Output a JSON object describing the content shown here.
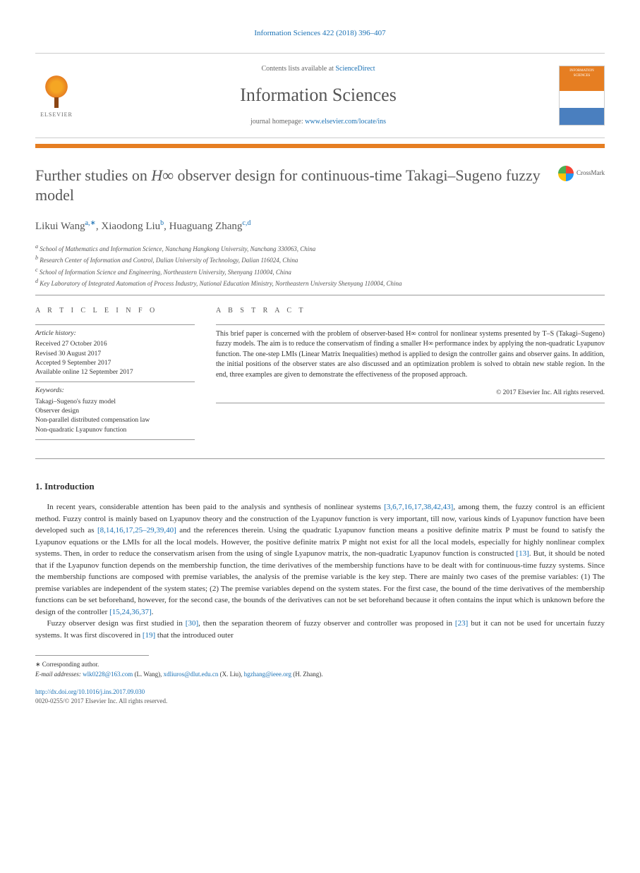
{
  "citation": "Information Sciences 422 (2018) 396–407",
  "header": {
    "contents_prefix": "Contents lists available at ",
    "contents_link": "ScienceDirect",
    "journal_name": "Information Sciences",
    "homepage_prefix": "journal homepage: ",
    "homepage_url": "www.elsevier.com/locate/ins",
    "elsevier": "ELSEVIER",
    "cover_text": "INFORMATION SCIENCES"
  },
  "orange_bar_color": "#e67e22",
  "title": {
    "prefix": "Further studies on ",
    "math": "H∞",
    "suffix": " observer design for continuous-time Takagi–Sugeno fuzzy model"
  },
  "crossmark": "CrossMark",
  "authors": [
    {
      "name": "Likui Wang",
      "sup": "a,∗"
    },
    {
      "name": "Xiaodong Liu",
      "sup": "b"
    },
    {
      "name": "Huaguang Zhang",
      "sup": "c,d"
    }
  ],
  "affiliations": [
    {
      "sup": "a",
      "text": "School of Mathematics and Information Science, Nanchang Hangkong University, Nanchang 330063, China"
    },
    {
      "sup": "b",
      "text": "Research Center of Information and Control, Dalian University of Technology, Dalian 116024, China"
    },
    {
      "sup": "c",
      "text": "School of Information Science and Engineering, Northeastern University, Shenyang 110004, China"
    },
    {
      "sup": "d",
      "text": "Key Laboratory of Integrated Automation of Process Industry, National Education Ministry, Northeastern University Shenyang 110004, China"
    }
  ],
  "article_info": {
    "heading": "A R T I C L E   I N F O",
    "history_label": "Article history:",
    "history": [
      "Received 27 October 2016",
      "Revised 30 August 2017",
      "Accepted 9 September 2017",
      "Available online 12 September 2017"
    ],
    "keywords_label": "Keywords:",
    "keywords": [
      "Takagi–Sugeno's fuzzy model",
      "Observer design",
      "Non-parallel distributed compensation law",
      "Non-quadratic Lyapunov function"
    ]
  },
  "abstract": {
    "heading": "A B S T R A C T",
    "text": "This brief paper is concerned with the problem of observer-based H∞ control for nonlinear systems presented by T–S (Takagi–Sugeno) fuzzy models. The aim is to reduce the conservatism of finding a smaller H∞ performance index by applying the non-quadratic Lyapunov function. The one-step LMIs (Linear Matrix Inequalities) method is applied to design the controller gains and observer gains. In addition, the initial positions of the observer states are also discussed and an optimization problem is solved to obtain new stable region. In the end, three examples are given to demonstrate the effectiveness of the proposed approach.",
    "copyright": "© 2017 Elsevier Inc. All rights reserved."
  },
  "section1": {
    "heading": "1. Introduction",
    "para1_parts": [
      {
        "t": "text",
        "v": "In recent years, considerable attention has been paid to the analysis and synthesis of nonlinear systems "
      },
      {
        "t": "ref",
        "v": "[3,6,7,16,17,38,42,43]"
      },
      {
        "t": "text",
        "v": ", among them, the fuzzy control is an efficient method. Fuzzy control is mainly based on Lyapunov theory and the construction of the Lyapunov function is very important, till now, various kinds of Lyapunov function have been developed such as "
      },
      {
        "t": "ref",
        "v": "[8,14,16,17,25–29,39,40]"
      },
      {
        "t": "text",
        "v": " and the references therein. Using the quadratic Lyapunov function means a positive definite matrix P must be found to satisfy the Lyapunov equations or the LMIs for all the local models. However, the positive definite matrix P might not exist for all the local models, especially for highly nonlinear complex systems. Then, in order to reduce the conservatism arisen from the using of single Lyapunov matrix, the non-quadratic Lyapunov function is constructed "
      },
      {
        "t": "ref",
        "v": "[13]"
      },
      {
        "t": "text",
        "v": ". But, it should be noted that if the Lyapunov function depends on the membership function, the time derivatives of the membership functions have to be dealt with for continuous-time fuzzy systems. Since the membership functions are composed with premise variables, the analysis of the premise variable is the key step. There are mainly two cases of the premise variables: (1) The premise variables are independent of the system states; (2) The premise variables depend on the system states. For the first case, the bound of the time derivatives of the membership functions can be set beforehand, however, for the second case, the bounds of the derivatives can not be set beforehand because it often contains the input which is unknown before the design of the controller "
      },
      {
        "t": "ref",
        "v": "[15,24,36,37]"
      },
      {
        "t": "text",
        "v": "."
      }
    ],
    "para2_parts": [
      {
        "t": "text",
        "v": "Fuzzy observer design was first studied in "
      },
      {
        "t": "ref",
        "v": "[30]"
      },
      {
        "t": "text",
        "v": ", then the separation theorem of fuzzy observer and controller was proposed in "
      },
      {
        "t": "ref",
        "v": "[23]"
      },
      {
        "t": "text",
        "v": " but it can not be used for uncertain fuzzy systems. It was first discovered in "
      },
      {
        "t": "ref",
        "v": "[19]"
      },
      {
        "t": "text",
        "v": " that the introduced outer"
      }
    ]
  },
  "footnote": {
    "corr": "∗ Corresponding author.",
    "email_label": "E-mail addresses: ",
    "emails": [
      {
        "addr": "wlk0228@163.com",
        "who": "(L. Wang)"
      },
      {
        "addr": "xdliuros@dlut.edu.cn",
        "who": "(X. Liu)"
      },
      {
        "addr": "hgzhang@ieee.org",
        "who": "(H. Zhang)"
      }
    ]
  },
  "doi": "http://dx.doi.org/10.1016/j.ins.2017.09.030",
  "issn": "0020-0255/© 2017 Elsevier Inc. All rights reserved.",
  "colors": {
    "link": "#1a71b5",
    "orange": "#e67e22",
    "text": "#333333",
    "heading_gray": "#575757"
  }
}
